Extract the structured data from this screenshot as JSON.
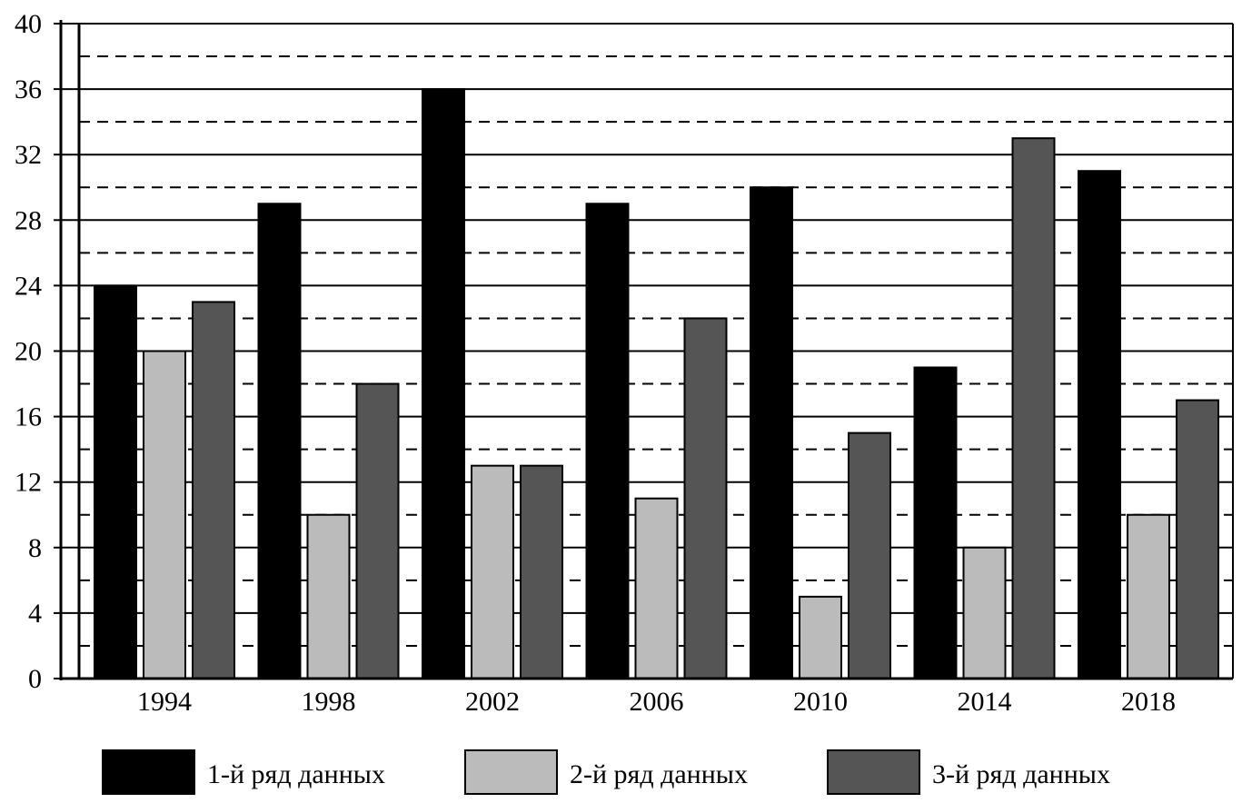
{
  "chart_data": {
    "type": "bar",
    "title": "",
    "xlabel": "",
    "ylabel": "",
    "categories": [
      "1994",
      "1998",
      "2002",
      "2006",
      "2010",
      "2014",
      "2018"
    ],
    "ylim": [
      0,
      40
    ],
    "yticks": [
      "0",
      "4",
      "8",
      "12",
      "16",
      "20",
      "24",
      "28",
      "32",
      "36",
      "40"
    ],
    "minor_grid": [
      2,
      6,
      10,
      14,
      18,
      22,
      26,
      30,
      34,
      38
    ],
    "grid": "major solid, minor dashed",
    "legend_position": "bottom",
    "series": [
      {
        "name": "1-й ряд данных",
        "color": "#000000",
        "values": [
          24,
          29,
          36,
          29,
          30,
          19,
          31
        ]
      },
      {
        "name": "2-й ряд данных",
        "color": "#bbbbbb",
        "values": [
          20,
          10,
          13,
          11,
          5,
          8,
          10
        ]
      },
      {
        "name": "3-й ряд данных",
        "color": "#555555",
        "values": [
          23,
          18,
          13,
          22,
          15,
          33,
          17
        ]
      }
    ]
  }
}
